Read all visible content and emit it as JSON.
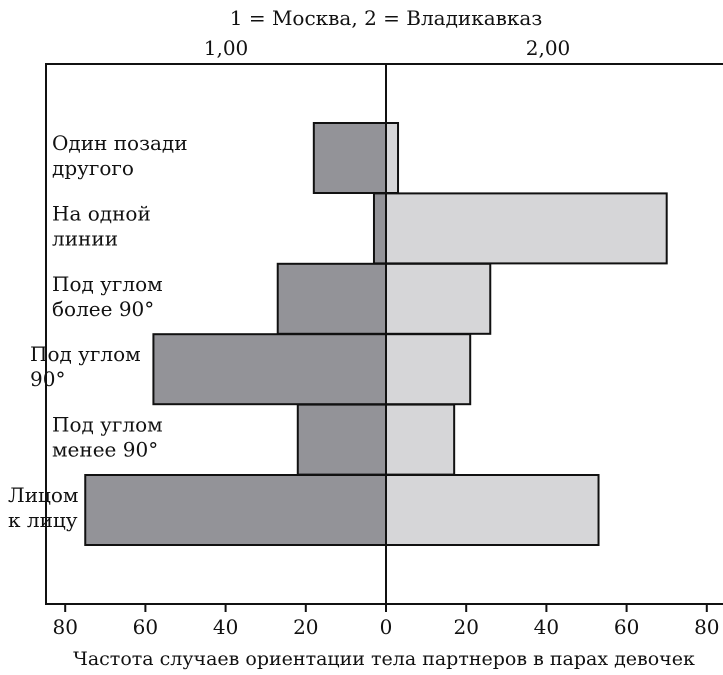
{
  "chart_data": {
    "type": "bar",
    "orientation": "horizontal-diverging",
    "title": "1 = Москва, 2 = Владикавказ",
    "top_labels": [
      "1,00",
      "2,00"
    ],
    "xlabel": "Частота случаев ориентации тела партнеров в парах девочек",
    "xlim": [
      -80,
      80
    ],
    "x_ticks": [
      80,
      60,
      40,
      20,
      0,
      20,
      40,
      60,
      80
    ],
    "categories": [
      [
        "Один позади",
        "другого"
      ],
      [
        "На одной",
        "линии"
      ],
      [
        "Под углом",
        "более 90°"
      ],
      [
        "Под углом",
        "90°"
      ],
      [
        "Под углом",
        "менее 90°"
      ],
      [
        "Лицом",
        "к лицу"
      ]
    ],
    "series": [
      {
        "values": [
          18,
          3,
          27,
          58,
          22,
          75
        ],
        "color": "#939398"
      },
      {
        "values": [
          3,
          70,
          26,
          21,
          17,
          53
        ],
        "color": "#d6d6d8"
      }
    ],
    "grid": false
  }
}
